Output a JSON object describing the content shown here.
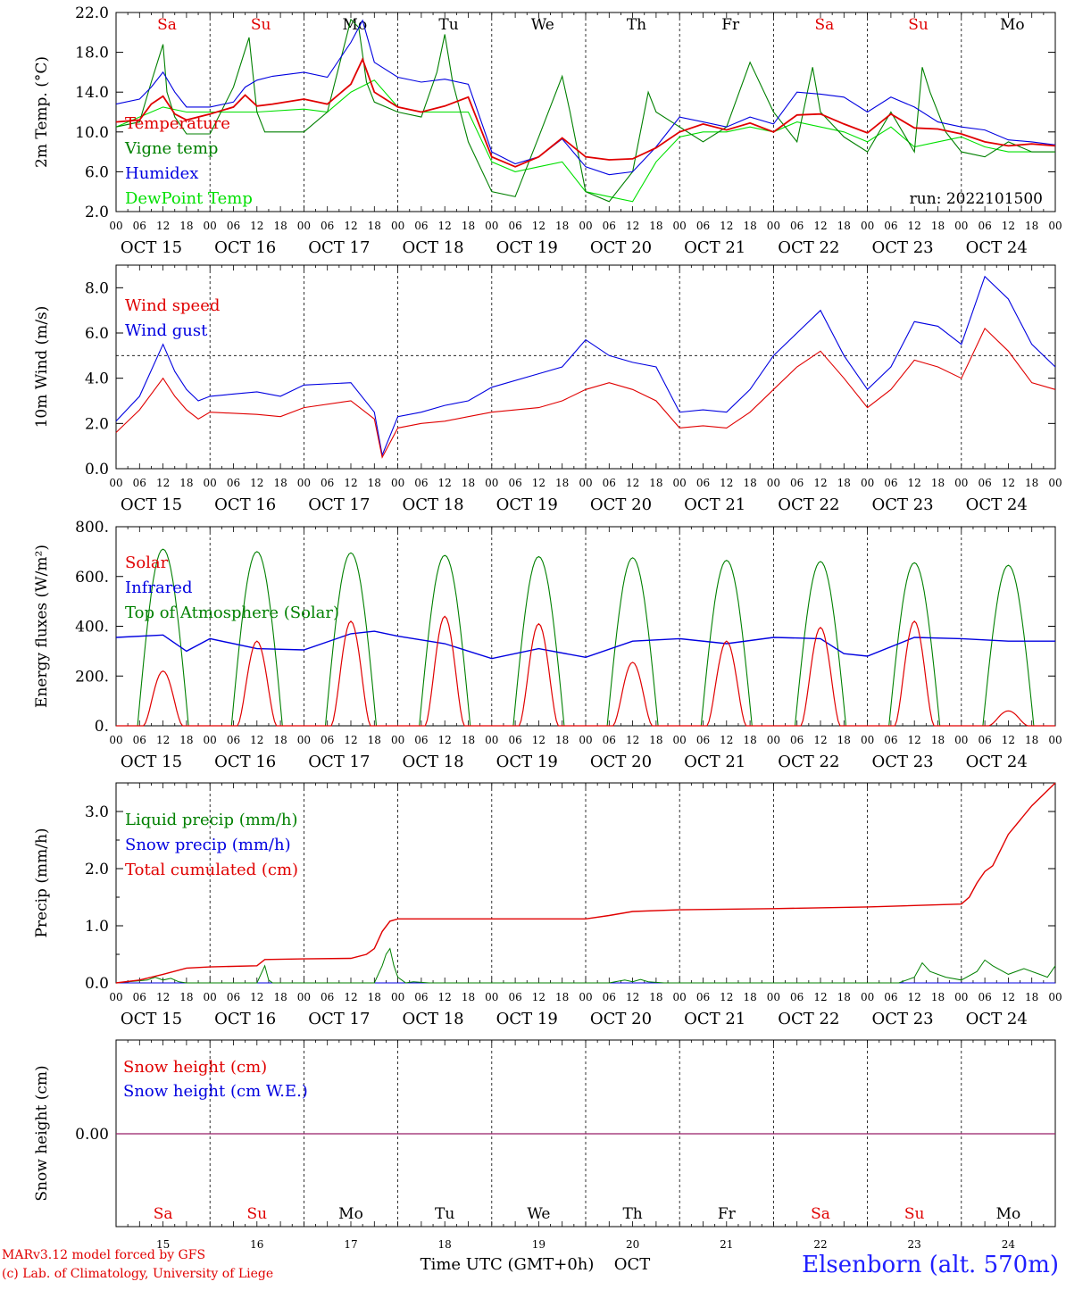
{
  "run_label": "run: 2022101500",
  "day_abbrevs": [
    "Sa",
    "Su",
    "Mo",
    "Tu",
    "We",
    "Th",
    "Fr",
    "Sa",
    "Su",
    "Mo"
  ],
  "weekend_color": "#e00000",
  "weekday_color": "#000000",
  "hour_ticks": [
    "00",
    "06",
    "12",
    "18"
  ],
  "date_labels": [
    "OCT 15",
    "OCT 16",
    "OCT 17",
    "OCT 18",
    "OCT 19",
    "OCT 20",
    "OCT 21",
    "OCT 22",
    "OCT 23",
    "OCT 24"
  ],
  "day_numbers": [
    "15",
    "16",
    "17",
    "18",
    "19",
    "20",
    "21",
    "22",
    "23",
    "24"
  ],
  "x_axis_title": "Time UTC (GMT+0h)",
  "month_label": "OCT",
  "footer": {
    "model_line": "MARv3.12 model forced by GFS",
    "credit_line": "(c) Lab. of Climatology, University of Liege",
    "station": "Elsenborn (alt. 570m)"
  },
  "chart_data": [
    {
      "type": "line",
      "ylabel": "2m Temp. (°C)",
      "ylim": [
        2.0,
        22.0
      ],
      "yticks": [
        "2.0",
        "6.0",
        "10.0",
        "14.0",
        "18.0",
        "22.0"
      ],
      "x_unit": "hours since OCT 15 00 UTC",
      "xlim": [
        0,
        240
      ],
      "grid": "dashed vertical lines at each day boundary",
      "legend_placement": "left",
      "series": [
        {
          "name": "Temperature",
          "color": "#e00000",
          "x": [
            0,
            6,
            9,
            12,
            15,
            18,
            24,
            30,
            33,
            36,
            40,
            48,
            54,
            60,
            63,
            66,
            72,
            78,
            84,
            90,
            96,
            102,
            108,
            114,
            120,
            126,
            132,
            138,
            144,
            150,
            156,
            162,
            168,
            174,
            180,
            186,
            192,
            198,
            204,
            210,
            216,
            222,
            228,
            234,
            240
          ],
          "values": [
            11.0,
            11.2,
            12.8,
            13.6,
            11.8,
            11.2,
            11.8,
            12.5,
            13.7,
            12.6,
            12.8,
            13.3,
            12.8,
            14.8,
            17.3,
            14.0,
            12.5,
            12.0,
            12.6,
            13.5,
            7.5,
            6.5,
            7.5,
            9.4,
            7.5,
            7.2,
            7.3,
            8.4,
            10.0,
            10.8,
            10.2,
            10.9,
            10.0,
            11.7,
            11.8,
            10.8,
            9.9,
            11.8,
            10.4,
            10.3,
            9.8,
            9.0,
            8.6,
            8.8,
            8.6
          ]
        },
        {
          "name": "Vigne temp",
          "color": "#008000",
          "x": [
            0,
            6,
            9,
            12,
            13,
            15,
            18,
            24,
            30,
            34,
            36,
            38,
            42,
            48,
            54,
            60,
            62,
            64,
            66,
            72,
            78,
            82,
            84,
            86,
            90,
            96,
            102,
            108,
            114,
            116,
            120,
            126,
            132,
            136,
            138,
            144,
            150,
            156,
            162,
            168,
            174,
            178,
            180,
            186,
            192,
            198,
            204,
            206,
            208,
            212,
            216,
            222,
            228,
            234,
            240
          ],
          "values": [
            10.5,
            11.0,
            15.0,
            18.8,
            14.0,
            11.5,
            9.8,
            9.8,
            14.5,
            19.5,
            12.0,
            10.0,
            10.0,
            10.0,
            12.0,
            21.3,
            20.5,
            15.0,
            13.0,
            12.0,
            11.5,
            16.0,
            19.8,
            15.0,
            9.0,
            4.0,
            3.5,
            9.5,
            15.6,
            12.0,
            4.0,
            3.0,
            6.0,
            14.0,
            12.0,
            10.5,
            9.0,
            10.5,
            17.0,
            12.0,
            9.0,
            16.5,
            12.0,
            9.5,
            8.0,
            12.0,
            8.0,
            16.5,
            14.0,
            10.0,
            8.0,
            7.5,
            9.0,
            8.0,
            8.0
          ]
        },
        {
          "name": "Humidex",
          "color": "#0000e0",
          "x": [
            0,
            6,
            9,
            12,
            15,
            18,
            24,
            30,
            33,
            36,
            40,
            48,
            54,
            60,
            63,
            66,
            72,
            78,
            84,
            90,
            96,
            102,
            108,
            114,
            120,
            126,
            132,
            138,
            144,
            150,
            156,
            162,
            168,
            174,
            180,
            186,
            192,
            198,
            204,
            210,
            216,
            222,
            228,
            234,
            240
          ],
          "values": [
            12.8,
            13.3,
            14.5,
            16.0,
            14.0,
            12.5,
            12.5,
            13.0,
            14.5,
            15.2,
            15.6,
            16.0,
            15.5,
            19.0,
            21.2,
            17.0,
            15.5,
            15.0,
            15.3,
            14.8,
            8.0,
            6.8,
            7.5,
            9.3,
            6.5,
            5.7,
            6.0,
            8.5,
            11.5,
            11.0,
            10.5,
            11.5,
            10.8,
            14.0,
            13.8,
            13.5,
            12.0,
            13.5,
            12.5,
            11.0,
            10.5,
            10.2,
            9.2,
            9.0,
            8.7
          ]
        },
        {
          "name": "DewPoint Temp",
          "color": "#00e000",
          "x": [
            0,
            6,
            12,
            18,
            24,
            30,
            36,
            48,
            54,
            60,
            66,
            72,
            78,
            84,
            90,
            96,
            102,
            108,
            114,
            120,
            126,
            132,
            138,
            144,
            150,
            156,
            162,
            168,
            174,
            180,
            186,
            192,
            198,
            204,
            210,
            216,
            222,
            228,
            234,
            240
          ],
          "values": [
            10.5,
            11.5,
            12.5,
            12.0,
            12.0,
            12.0,
            12.0,
            12.3,
            12.0,
            14.0,
            15.2,
            12.5,
            12.0,
            12.0,
            12.0,
            7.0,
            6.0,
            6.5,
            7.0,
            4.0,
            3.5,
            3.0,
            7.0,
            9.5,
            10.0,
            10.0,
            10.5,
            10.0,
            11.0,
            10.5,
            10.0,
            9.0,
            10.5,
            8.5,
            9.0,
            9.5,
            8.5,
            8.0,
            8.0,
            8.0
          ]
        }
      ]
    },
    {
      "type": "line",
      "ylabel": "10m Wind (m/s)",
      "ylim": [
        0.0,
        9.0
      ],
      "yticks": [
        "0.0",
        "2.0",
        "4.0",
        "6.0",
        "8.0"
      ],
      "reference_line": 5.0,
      "x_unit": "hours since OCT 15 00 UTC",
      "xlim": [
        0,
        240
      ],
      "legend_placement": "left",
      "series": [
        {
          "name": "Wind speed",
          "color": "#e00000",
          "x": [
            0,
            6,
            12,
            15,
            18,
            21,
            24,
            36,
            42,
            48,
            60,
            66,
            68,
            72,
            78,
            84,
            90,
            96,
            108,
            114,
            120,
            126,
            132,
            138,
            144,
            150,
            156,
            162,
            168,
            174,
            180,
            186,
            192,
            198,
            204,
            210,
            216,
            222,
            228,
            234,
            240
          ],
          "values": [
            1.6,
            2.6,
            4.0,
            3.2,
            2.6,
            2.2,
            2.5,
            2.4,
            2.3,
            2.7,
            3.0,
            2.2,
            0.5,
            1.8,
            2.0,
            2.1,
            2.3,
            2.5,
            2.7,
            3.0,
            3.5,
            3.8,
            3.5,
            3.0,
            1.8,
            1.9,
            1.8,
            2.5,
            3.5,
            4.5,
            5.2,
            4.0,
            2.7,
            3.5,
            4.8,
            4.5,
            4.0,
            6.2,
            5.2,
            3.8,
            3.5
          ]
        },
        {
          "name": "Wind gust",
          "color": "#0000e0",
          "x": [
            0,
            6,
            12,
            15,
            18,
            21,
            24,
            36,
            42,
            48,
            60,
            66,
            68,
            72,
            78,
            84,
            90,
            96,
            108,
            114,
            120,
            126,
            132,
            138,
            144,
            150,
            156,
            162,
            168,
            174,
            180,
            186,
            192,
            198,
            204,
            210,
            216,
            222,
            228,
            234,
            240
          ],
          "values": [
            2.1,
            3.2,
            5.5,
            4.3,
            3.5,
            3.0,
            3.2,
            3.4,
            3.2,
            3.7,
            3.8,
            2.5,
            0.6,
            2.3,
            2.5,
            2.8,
            3.0,
            3.6,
            4.2,
            4.5,
            5.7,
            5.0,
            4.7,
            4.5,
            2.5,
            2.6,
            2.5,
            3.5,
            5.0,
            6.0,
            7.0,
            5.0,
            3.5,
            4.5,
            6.5,
            6.3,
            5.5,
            8.5,
            7.5,
            5.5,
            4.5
          ]
        }
      ]
    },
    {
      "type": "line",
      "ylabel": "Energy fluxes (W/m²)",
      "ylim": [
        0,
        800
      ],
      "yticks": [
        "0.",
        "200.",
        "400.",
        "600.",
        "800."
      ],
      "x_unit": "hours since OCT 15 00 UTC",
      "xlim": [
        0,
        240
      ],
      "legend_placement": "left",
      "series": [
        {
          "name": "Solar",
          "color": "#e00000",
          "day_peaks": [
            220,
            340,
            420,
            440,
            410,
            255,
            340,
            395,
            420,
            60
          ]
        },
        {
          "name": "Infrared",
          "color": "#0000e0",
          "x": [
            0,
            12,
            18,
            24,
            36,
            48,
            60,
            66,
            72,
            84,
            96,
            108,
            120,
            132,
            144,
            156,
            168,
            180,
            186,
            192,
            204,
            216,
            228,
            240
          ],
          "values": [
            355,
            365,
            300,
            350,
            310,
            305,
            370,
            380,
            360,
            330,
            270,
            310,
            275,
            340,
            350,
            330,
            355,
            350,
            290,
            280,
            355,
            350,
            340,
            340
          ]
        },
        {
          "name": "Top of Atmosphere (Solar)",
          "color": "#008000",
          "day_peaks": [
            710,
            700,
            695,
            685,
            680,
            675,
            665,
            660,
            655,
            645
          ]
        }
      ]
    },
    {
      "type": "line",
      "ylabel": "Precip (mm/h)",
      "ylim": [
        0.0,
        3.5
      ],
      "yticks": [
        "0.0",
        "1.0",
        "2.0",
        "3.0"
      ],
      "x_unit": "hours since OCT 15 00 UTC",
      "xlim": [
        0,
        240
      ],
      "legend_placement": "left",
      "series": [
        {
          "name": "Liquid precip (mm/h)",
          "color": "#008000",
          "x": [
            0,
            8,
            10,
            12,
            14,
            16,
            18,
            36,
            38,
            39,
            40,
            66,
            68,
            69,
            70,
            71,
            72,
            73,
            74,
            76,
            80,
            126,
            130,
            132,
            134,
            136,
            140,
            200,
            204,
            206,
            208,
            212,
            216,
            220,
            222,
            224,
            228,
            232,
            236,
            238,
            240
          ],
          "values": [
            0,
            0.05,
            0.1,
            0.05,
            0.08,
            0.02,
            0,
            0,
            0.3,
            0.05,
            0,
            0,
            0.3,
            0.5,
            0.6,
            0.3,
            0.1,
            0.05,
            0,
            0.02,
            0,
            0,
            0.05,
            0.02,
            0.06,
            0.02,
            0,
            0,
            0.1,
            0.35,
            0.2,
            0.1,
            0.05,
            0.2,
            0.4,
            0.3,
            0.15,
            0.25,
            0.15,
            0.1,
            0.3
          ]
        },
        {
          "name": "Snow precip (mm/h)",
          "color": "#0000e0",
          "x": [
            0,
            240
          ],
          "values": [
            0,
            0
          ]
        },
        {
          "name": "Total cumulated (cm)",
          "color": "#e00000",
          "x": [
            0,
            6,
            12,
            18,
            24,
            36,
            38,
            48,
            60,
            64,
            66,
            68,
            70,
            72,
            96,
            120,
            126,
            132,
            144,
            168,
            192,
            216,
            218,
            220,
            222,
            224,
            228,
            234,
            240
          ],
          "values": [
            0.0,
            0.05,
            0.15,
            0.26,
            0.28,
            0.3,
            0.41,
            0.42,
            0.43,
            0.5,
            0.6,
            0.9,
            1.08,
            1.12,
            1.12,
            1.12,
            1.18,
            1.25,
            1.28,
            1.3,
            1.33,
            1.38,
            1.5,
            1.75,
            1.95,
            2.05,
            2.6,
            3.1,
            3.5
          ]
        }
      ]
    },
    {
      "type": "line",
      "ylabel": "Snow height (cm)",
      "yticks": [
        "0.00"
      ],
      "x_unit": "hours since OCT 15 00 UTC",
      "xlim": [
        0,
        240
      ],
      "legend_placement": "left",
      "series": [
        {
          "name": "Snow height (cm)",
          "color": "#e00000",
          "x": [
            0,
            240
          ],
          "values": [
            0,
            0
          ]
        },
        {
          "name": "Snow height (cm W.E.)",
          "color": "#0000e0",
          "x": [
            0,
            240
          ],
          "values": [
            0,
            0
          ]
        }
      ]
    }
  ]
}
